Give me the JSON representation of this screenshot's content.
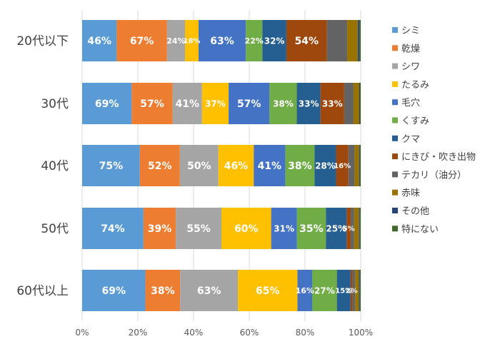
{
  "chart_data": {
    "type": "bar",
    "orientation": "horizontal",
    "stacked": "percent",
    "categories": [
      "20代以下",
      "30代",
      "40代",
      "50代",
      "60代以上"
    ],
    "series": [
      {
        "name": "シミ",
        "color": "#5B9BD5",
        "values": [
          46,
          69,
          75,
          74,
          69
        ],
        "labels": [
          "46%",
          "69%",
          "75%",
          "74%",
          "69%"
        ]
      },
      {
        "name": "乾燥",
        "color": "#ED7D31",
        "values": [
          67,
          57,
          52,
          39,
          38
        ],
        "labels": [
          "67%",
          "57%",
          "52%",
          "39%",
          "38%"
        ]
      },
      {
        "name": "シワ",
        "color": "#A5A5A5",
        "values": [
          24,
          41,
          50,
          55,
          63
        ],
        "labels": [
          "24%",
          "41%",
          "50%",
          "55%",
          "63%"
        ]
      },
      {
        "name": "たるみ",
        "color": "#FFC000",
        "values": [
          18,
          37,
          46,
          60,
          65
        ],
        "labels": [
          "18%",
          "37%",
          "46%",
          "60%",
          "65%"
        ]
      },
      {
        "name": "毛穴",
        "color": "#4472C4",
        "values": [
          63,
          57,
          41,
          31,
          16
        ],
        "labels": [
          "63%",
          "57%",
          "41%",
          "31%",
          "16%"
        ]
      },
      {
        "name": "くすみ",
        "color": "#70AD47",
        "values": [
          22,
          38,
          38,
          35,
          27
        ],
        "labels": [
          "22%",
          "38%",
          "38%",
          "35%",
          "27%"
        ]
      },
      {
        "name": "クマ",
        "color": "#255E91",
        "values": [
          32,
          33,
          28,
          25,
          15
        ],
        "labels": [
          "32%",
          "33%",
          "28%",
          "25%",
          "15%"
        ]
      },
      {
        "name": "にきび・吹き出物",
        "color": "#9E480E",
        "values": [
          54,
          33,
          16,
          5,
          2
        ],
        "labels": [
          "54%",
          "33%",
          "16%",
          "5%",
          "2%"
        ]
      },
      {
        "name": "テカリ（油分）",
        "color": "#636363",
        "values": [
          27,
          13,
          8,
          4,
          3
        ],
        "labels": [
          "",
          "",
          "",
          "",
          ""
        ]
      },
      {
        "name": "赤味",
        "color": "#997300",
        "values": [
          14,
          8,
          6,
          6,
          4
        ],
        "labels": [
          "",
          "",
          "",
          "",
          ""
        ]
      },
      {
        "name": "その他",
        "color": "#264478",
        "values": [
          2,
          1,
          1,
          1,
          1
        ],
        "labels": [
          "",
          "",
          "",
          "",
          ""
        ]
      },
      {
        "name": "特にない",
        "color": "#43682B",
        "values": [
          2,
          1,
          1,
          1,
          1
        ],
        "labels": [
          "",
          "",
          "",
          "",
          ""
        ]
      }
    ],
    "xlim": [
      0,
      100
    ],
    "xticks": [
      "0%",
      "20%",
      "40%",
      "60%",
      "80%",
      "100%"
    ],
    "grid": true,
    "legend_position": "right",
    "title": "",
    "xlabel": "",
    "ylabel": ""
  }
}
